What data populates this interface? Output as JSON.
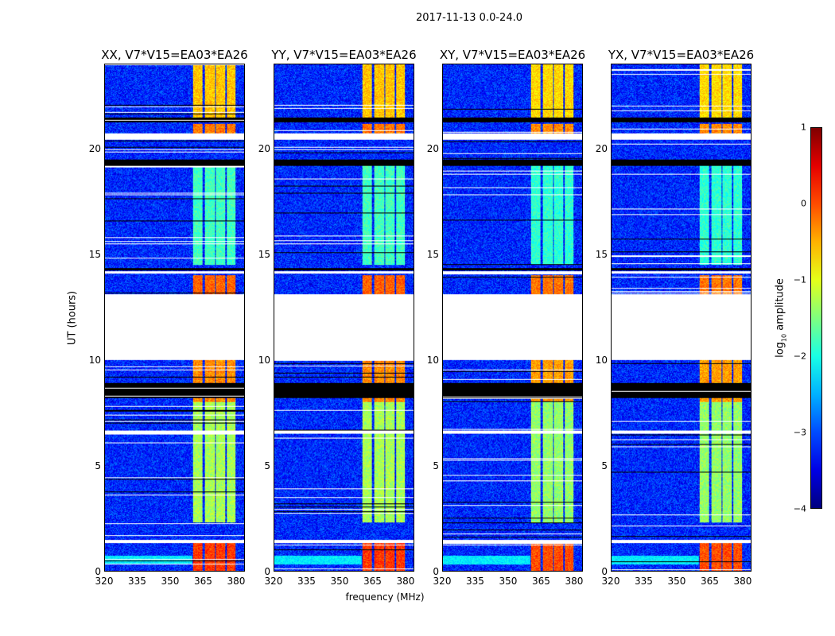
{
  "chart_data": {
    "type": "heatmap",
    "title": "2017-11-13 0.0-24.0",
    "xlabel": "frequency (MHz)",
    "ylabel": "UT (hours)",
    "xlim": [
      320,
      384
    ],
    "ylim": [
      0,
      24
    ],
    "xticks": [
      "320",
      "335",
      "350",
      "365",
      "380"
    ],
    "xtick_values": [
      320,
      335,
      350,
      365,
      380
    ],
    "yticks": [
      "0",
      "5",
      "10",
      "15",
      "20"
    ],
    "ytick_values": [
      0,
      5,
      10,
      15,
      20
    ],
    "panels": [
      {
        "title": "XX, V7*V15=EA03*EA26"
      },
      {
        "title": "YY, V7*V15=EA03*EA26"
      },
      {
        "title": "XY, V7*V15=EA03*EA26"
      },
      {
        "title": "YX, V7*V15=EA03*EA26"
      }
    ],
    "colorbar": {
      "label": "log10 amplitude",
      "label_main": "log",
      "label_sub": "10",
      "label_rest": " amplitude",
      "range": [
        -4,
        1
      ],
      "ticks": [
        "1",
        "0",
        "−1",
        "−2",
        "−3",
        "−4"
      ],
      "tick_values": [
        1,
        0,
        -1,
        -2,
        -3,
        -4
      ],
      "colormap": "jet"
    },
    "background_log_amplitude": -3.2,
    "bright_channels_mhz": [
      [
        360.5,
        365
      ],
      [
        366,
        370.5
      ],
      [
        371,
        375.5
      ],
      [
        376,
        380
      ]
    ],
    "bright_periods": [
      {
        "ut": [
          0,
          1.3
        ],
        "value": 0.1
      },
      {
        "ut": [
          2.3,
          8.0
        ],
        "value": -1.3
      },
      {
        "ut": [
          8.0,
          10.0
        ],
        "value": -0.3
      },
      {
        "ut": [
          13.1,
          14.0
        ],
        "value": -0.1
      },
      {
        "ut": [
          14.5,
          19.2
        ],
        "value": -1.8
      },
      {
        "ut": [
          20.7,
          21.2
        ],
        "value": -0.2
      },
      {
        "ut": [
          21.5,
          24
        ],
        "value": -0.6
      }
    ],
    "flagged_blank_ut": [
      [
        10.0,
        13.1
      ],
      [
        20.45,
        20.75
      ],
      [
        6.5,
        6.65
      ],
      [
        1.3,
        1.45
      ],
      [
        14.1,
        14.2
      ]
    ],
    "zero_black_ut": [
      [
        8.2,
        8.9
      ],
      [
        19.2,
        19.5
      ],
      [
        21.25,
        21.5
      ],
      [
        14.25,
        14.35
      ]
    ]
  }
}
